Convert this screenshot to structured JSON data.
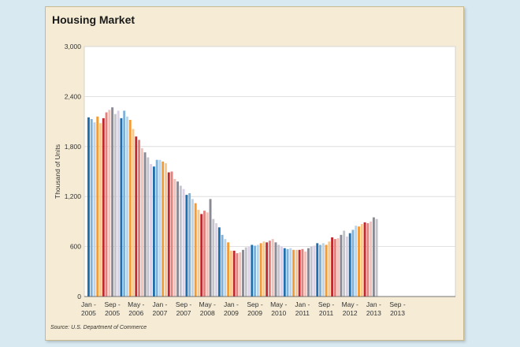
{
  "title": "Housing Market",
  "source": "Source: U.S. Department of Commerce",
  "colors": {
    "panel_bg": "#f6ecd6",
    "plot_bg": "#ffffff",
    "grid": "#d8d8d8",
    "palette": [
      "#1f6fae",
      "#7fb2da",
      "#b9d4ea",
      "#f59b34",
      "#f7c98f",
      "#c1272d",
      "#e3827c",
      "#f1c0b8",
      "#8a8a94",
      "#c4c4cc",
      "#dcd0e6"
    ]
  },
  "chart_data": {
    "type": "bar",
    "title": "Housing Market",
    "xlabel": "",
    "ylabel": "Thousand of Units",
    "ylim": [
      0,
      3000
    ],
    "yticks": [
      0,
      600,
      1200,
      1800,
      2400,
      3000
    ],
    "ytick_labels": [
      "0",
      "600",
      "1,200",
      "1,800",
      "2,400",
      "3,000"
    ],
    "grid": true,
    "xtick_labels": [
      [
        "Jan -",
        "2005"
      ],
      [
        "Sep -",
        "2005"
      ],
      [
        "May -",
        "2006"
      ],
      [
        "Jan -",
        "2007"
      ],
      [
        "Sep -",
        "2007"
      ],
      [
        "May -",
        "2008"
      ],
      [
        "Jan -",
        "2009"
      ],
      [
        "Sep -",
        "2009"
      ],
      [
        "May -",
        "2010"
      ],
      [
        "Jan -",
        "2011"
      ],
      [
        "Sep -",
        "2011"
      ],
      [
        "May -",
        "2012"
      ],
      [
        "Jan -",
        "2013"
      ],
      [
        "Sep -",
        "2013"
      ]
    ],
    "period": "monthly, Jan 2005 to Jan 2013",
    "values": [
      2150,
      2130,
      2090,
      2160,
      2080,
      2140,
      2210,
      2240,
      2270,
      2190,
      2230,
      2140,
      2230,
      2160,
      2120,
      2010,
      1920,
      1880,
      1780,
      1730,
      1670,
      1590,
      1560,
      1640,
      1640,
      1620,
      1600,
      1490,
      1500,
      1410,
      1380,
      1330,
      1290,
      1220,
      1240,
      1170,
      1120,
      1040,
      990,
      1030,
      1010,
      1170,
      930,
      880,
      830,
      740,
      690,
      650,
      550,
      550,
      520,
      530,
      560,
      590,
      600,
      620,
      610,
      620,
      640,
      660,
      650,
      670,
      690,
      650,
      620,
      600,
      580,
      570,
      580,
      560,
      560,
      560,
      570,
      540,
      580,
      600,
      610,
      640,
      620,
      640,
      620,
      660,
      710,
      690,
      700,
      740,
      790,
      720,
      760,
      800,
      850,
      840,
      870,
      890,
      880,
      900,
      950,
      930
    ]
  }
}
